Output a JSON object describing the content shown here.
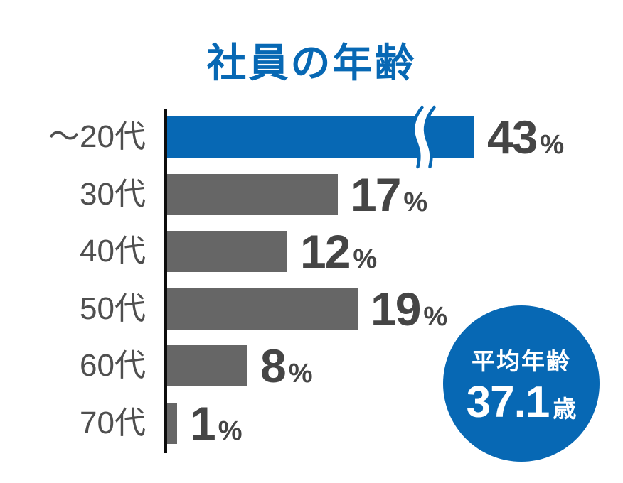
{
  "chart_data": {
    "type": "bar",
    "orientation": "horizontal",
    "title": "社員の年齢",
    "categories": [
      "～20代",
      "30代",
      "40代",
      "50代",
      "60代",
      "70代"
    ],
    "values": [
      43,
      17,
      12,
      19,
      8,
      1
    ],
    "value_suffix": "%",
    "highlight_index": 0,
    "axis_break_index": 0,
    "xlim": [
      0,
      20
    ],
    "grid": false,
    "legend": false,
    "annotation_badge": {
      "label": "平均年齢",
      "value": "37.1",
      "unit": "歳"
    },
    "colors": {
      "accent_blue": "#0768b4",
      "bar_gray": "#666666",
      "label_gray": "#4f4f4f",
      "value_gray": "#454545",
      "axis_black": "#0d0d0d",
      "badge_text": "#ffffff"
    }
  }
}
